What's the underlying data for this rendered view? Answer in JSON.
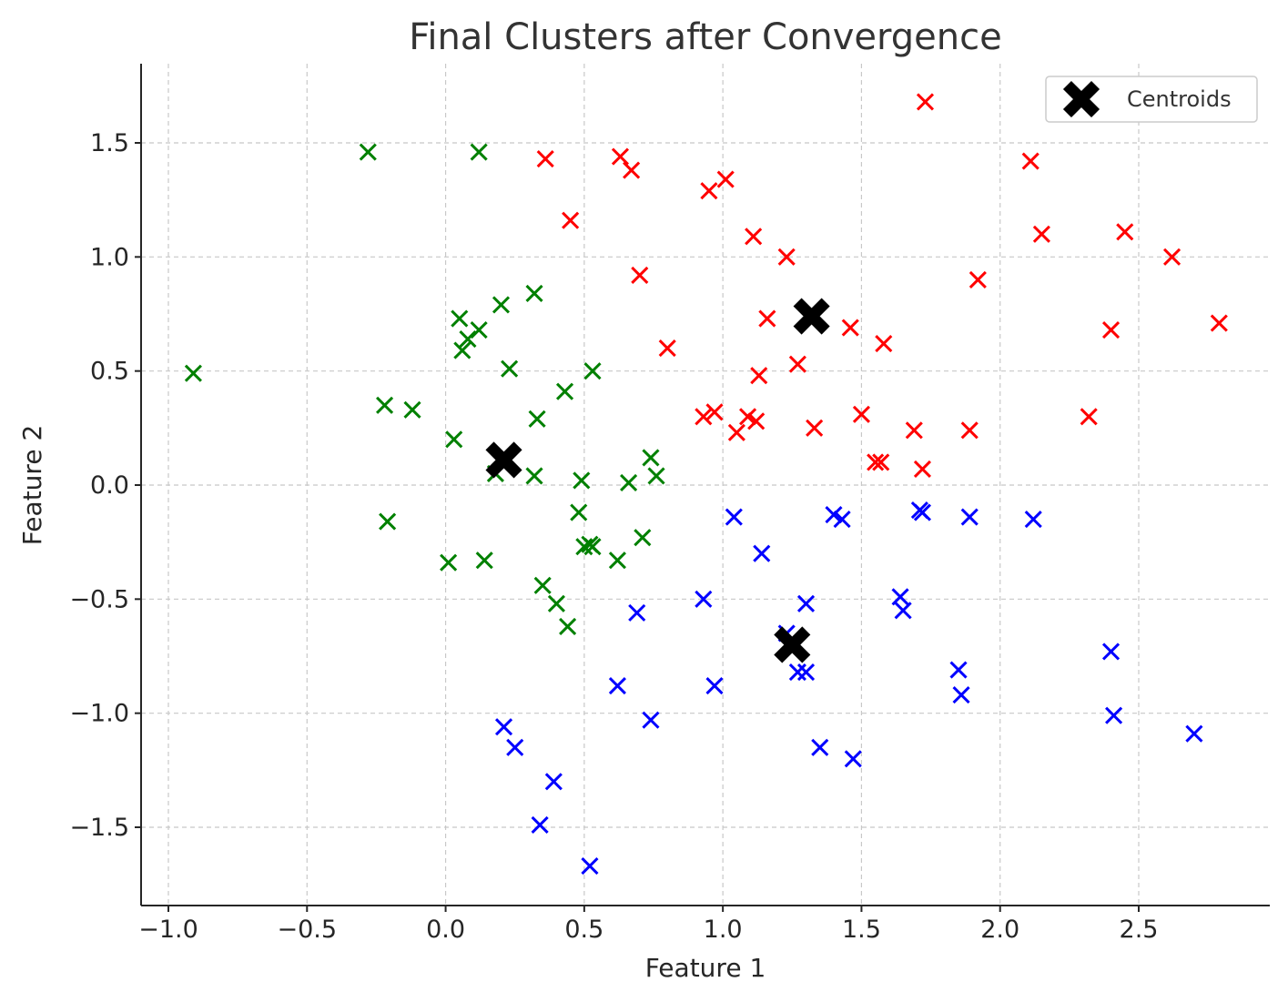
{
  "chart_data": {
    "type": "scatter",
    "title": "Final Clusters after Convergence",
    "xlabel": "Feature 1",
    "ylabel": "Feature 2",
    "xlim": [
      -1.1,
      2.96
    ],
    "ylim": [
      -1.83,
      1.86
    ],
    "x_ticks": [
      -1.0,
      -0.5,
      0.0,
      0.5,
      1.0,
      1.5,
      2.0,
      2.5
    ],
    "x_tick_labels": [
      "−1.0",
      "−0.5",
      "0.0",
      "0.5",
      "1.0",
      "1.5",
      "2.0",
      "2.5"
    ],
    "y_ticks": [
      1.5,
      1.0,
      0.5,
      0.0,
      -0.5,
      -1.0,
      -1.5
    ],
    "y_tick_labels": [
      "1.5",
      "1.0",
      "0.5",
      "0.0",
      "−0.5",
      "−1.0",
      "−1.5"
    ],
    "grid": true,
    "legend_position": "top-right",
    "legend": [
      {
        "label": "Centroids",
        "marker": "X",
        "color": "#000000"
      }
    ],
    "series": [
      {
        "color": "#ff0000",
        "marker": "x",
        "points": [
          [
            0.36,
            1.43
          ],
          [
            0.63,
            1.44
          ],
          [
            0.67,
            1.38
          ],
          [
            1.01,
            1.34
          ],
          [
            0.95,
            1.29
          ],
          [
            0.45,
            1.16
          ],
          [
            1.11,
            1.09
          ],
          [
            1.23,
            1.0
          ],
          [
            0.7,
            0.92
          ],
          [
            1.16,
            0.73
          ],
          [
            0.8,
            0.6
          ],
          [
            1.13,
            0.48
          ],
          [
            1.27,
            0.53
          ],
          [
            1.46,
            0.69
          ],
          [
            1.58,
            0.62
          ],
          [
            0.93,
            0.3
          ],
          [
            0.97,
            0.32
          ],
          [
            1.09,
            0.3
          ],
          [
            1.12,
            0.28
          ],
          [
            1.05,
            0.23
          ],
          [
            1.33,
            0.25
          ],
          [
            1.5,
            0.31
          ],
          [
            1.55,
            0.1
          ],
          [
            1.57,
            0.1
          ],
          [
            1.69,
            0.24
          ],
          [
            1.72,
            0.07
          ],
          [
            1.89,
            0.24
          ],
          [
            1.73,
            1.68
          ],
          [
            2.11,
            1.42
          ],
          [
            2.15,
            1.1
          ],
          [
            2.45,
            1.11
          ],
          [
            2.62,
            1.0
          ],
          [
            1.92,
            0.9
          ],
          [
            2.4,
            0.68
          ],
          [
            2.79,
            0.71
          ],
          [
            2.32,
            0.3
          ]
        ]
      },
      {
        "color": "#008000",
        "marker": "x",
        "points": [
          [
            -0.28,
            1.46
          ],
          [
            0.12,
            1.46
          ],
          [
            -0.91,
            0.49
          ],
          [
            0.05,
            0.73
          ],
          [
            0.2,
            0.79
          ],
          [
            0.32,
            0.84
          ],
          [
            0.08,
            0.64
          ],
          [
            0.12,
            0.68
          ],
          [
            0.06,
            0.59
          ],
          [
            0.23,
            0.51
          ],
          [
            0.53,
            0.5
          ],
          [
            0.43,
            0.41
          ],
          [
            -0.22,
            0.35
          ],
          [
            -0.12,
            0.33
          ],
          [
            0.33,
            0.29
          ],
          [
            0.03,
            0.2
          ],
          [
            0.74,
            0.12
          ],
          [
            0.76,
            0.04
          ],
          [
            0.32,
            0.04
          ],
          [
            0.49,
            0.02
          ],
          [
            0.66,
            0.01
          ],
          [
            0.18,
            0.05
          ],
          [
            -0.21,
            -0.16
          ],
          [
            0.48,
            -0.12
          ],
          [
            0.5,
            -0.27
          ],
          [
            0.52,
            -0.26
          ],
          [
            0.53,
            -0.27
          ],
          [
            0.71,
            -0.23
          ],
          [
            0.62,
            -0.33
          ],
          [
            0.01,
            -0.34
          ],
          [
            0.14,
            -0.33
          ],
          [
            0.35,
            -0.44
          ],
          [
            0.4,
            -0.52
          ],
          [
            0.44,
            -0.62
          ]
        ]
      },
      {
        "color": "#0000ff",
        "marker": "x",
        "points": [
          [
            1.04,
            -0.14
          ],
          [
            1.4,
            -0.13
          ],
          [
            1.43,
            -0.15
          ],
          [
            1.71,
            -0.11
          ],
          [
            1.72,
            -0.12
          ],
          [
            1.89,
            -0.14
          ],
          [
            2.12,
            -0.15
          ],
          [
            1.14,
            -0.3
          ],
          [
            1.64,
            -0.49
          ],
          [
            1.65,
            -0.55
          ],
          [
            0.93,
            -0.5
          ],
          [
            1.3,
            -0.52
          ],
          [
            0.69,
            -0.56
          ],
          [
            1.23,
            -0.65
          ],
          [
            1.27,
            -0.82
          ],
          [
            1.3,
            -0.82
          ],
          [
            0.62,
            -0.88
          ],
          [
            0.97,
            -0.88
          ],
          [
            1.85,
            -0.81
          ],
          [
            1.86,
            -0.92
          ],
          [
            2.4,
            -0.73
          ],
          [
            2.41,
            -1.01
          ],
          [
            2.7,
            -1.09
          ],
          [
            0.74,
            -1.03
          ],
          [
            0.21,
            -1.06
          ],
          [
            0.25,
            -1.15
          ],
          [
            1.35,
            -1.15
          ],
          [
            1.47,
            -1.2
          ],
          [
            0.39,
            -1.3
          ],
          [
            0.34,
            -1.49
          ],
          [
            0.52,
            -1.67
          ]
        ]
      }
    ],
    "centroids": [
      {
        "x": 1.32,
        "y": 0.74
      },
      {
        "x": 0.21,
        "y": 0.11
      },
      {
        "x": 1.25,
        "y": -0.7
      }
    ]
  }
}
